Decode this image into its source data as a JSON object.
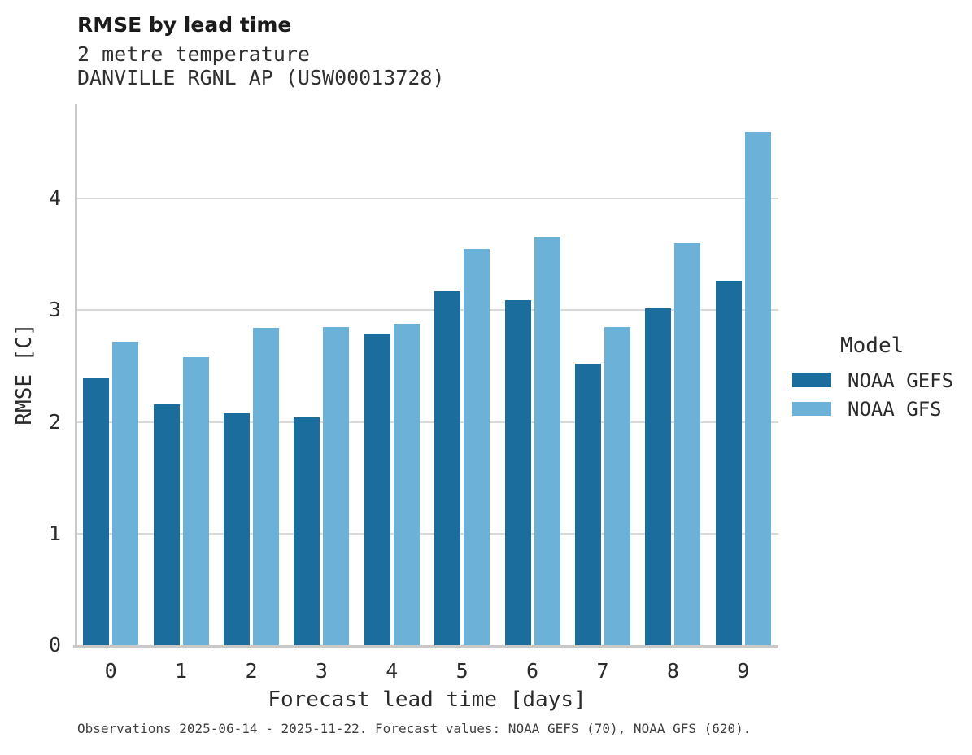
{
  "header": {
    "title": "RMSE by lead time",
    "subtitle1": "2 metre temperature",
    "subtitle2": "DANVILLE RGNL AP (USW00013728)"
  },
  "chart_data": {
    "type": "bar",
    "title": "RMSE by lead time",
    "subtitle": [
      "2 metre temperature",
      "DANVILLE RGNL AP (USW00013728)"
    ],
    "categories": [
      "0",
      "1",
      "2",
      "3",
      "4",
      "5",
      "6",
      "7",
      "8",
      "9"
    ],
    "series": [
      {
        "name": "NOAA GEFS",
        "color": "#1b6d9d",
        "values": [
          2.4,
          2.16,
          2.08,
          2.04,
          2.78,
          3.17,
          3.09,
          2.52,
          3.02,
          3.26
        ]
      },
      {
        "name": "NOAA GFS",
        "color": "#6cb1d8",
        "values": [
          2.72,
          2.58,
          2.84,
          2.85,
          2.88,
          3.55,
          3.66,
          2.85,
          3.6,
          4.6
        ]
      }
    ],
    "xlabel": "Forecast lead time [days]",
    "ylabel": "RMSE [C]",
    "ylim": [
      0,
      4.85
    ],
    "yticks": [
      0,
      1,
      2,
      3,
      4
    ],
    "grid": "horizontal",
    "legend_title": "Model",
    "legend_position": "right"
  },
  "footnote": "Observations 2025-06-14 - 2025-11-22. Forecast values: NOAA GEFS (70), NOAA GFS (620).",
  "colors": {
    "gefs": "#1b6d9d",
    "gfs": "#6cb1d8",
    "gridline": "#d9d9d9",
    "spine": "#c9c9c9"
  }
}
